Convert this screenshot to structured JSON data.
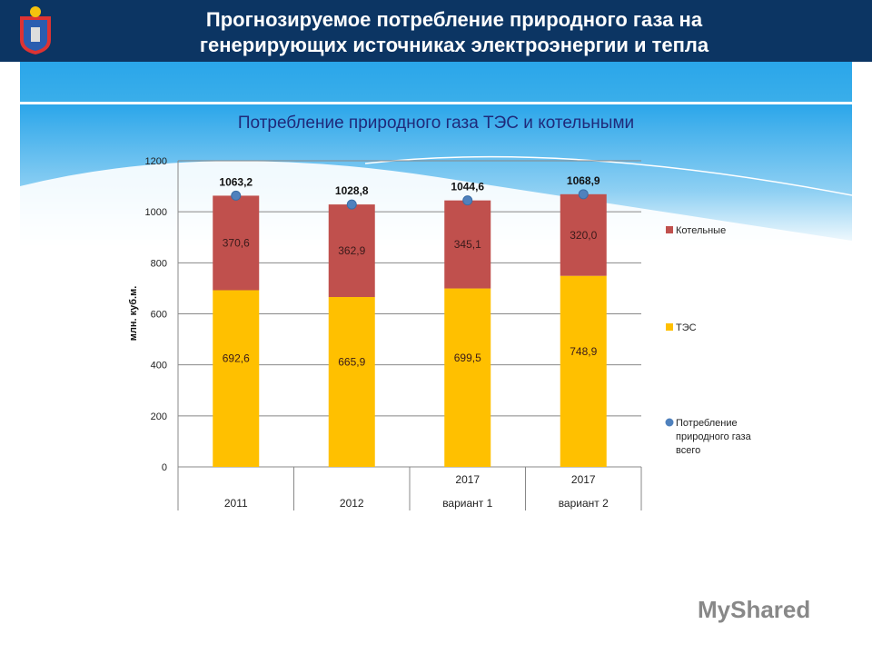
{
  "header": {
    "title_line1": "Прогнозируемое потребление природного газа на",
    "title_line2": "генерирующих источниках электроэнергии и тепла"
  },
  "watermark": "MyShared",
  "chart_data": {
    "type": "bar",
    "stacked": true,
    "title": "Потребление природного газа ТЭС и котельными",
    "ylabel": "млн. куб.м.",
    "ylim": [
      0,
      1200
    ],
    "yticks": [
      0,
      200,
      400,
      600,
      800,
      1000,
      1200
    ],
    "grid": true,
    "legend_position": "right",
    "categories": [
      [
        "",
        "2011"
      ],
      [
        "",
        "2012"
      ],
      [
        "2017",
        "вариант 1"
      ],
      [
        "2017",
        "вариант 2"
      ]
    ],
    "series": [
      {
        "name": "ТЭС",
        "type": "bar",
        "color": "#ffc000",
        "values": [
          692.6,
          665.9,
          699.5,
          748.9
        ],
        "labels": [
          "692,6",
          "665,9",
          "699,5",
          "748,9"
        ]
      },
      {
        "name": "Котельные",
        "type": "bar",
        "color": "#c0504d",
        "values": [
          370.6,
          362.9,
          345.1,
          320.0
        ],
        "labels": [
          "370,6",
          "362,9",
          "345,1",
          "320,0"
        ]
      },
      {
        "name": "Потребление природного газа всего",
        "type": "point",
        "color": "#4f81bd",
        "values": [
          1063.2,
          1028.8,
          1044.6,
          1068.9
        ],
        "labels": [
          "1063,2",
          "1028,8",
          "1044,6",
          "1068,9"
        ]
      }
    ]
  }
}
